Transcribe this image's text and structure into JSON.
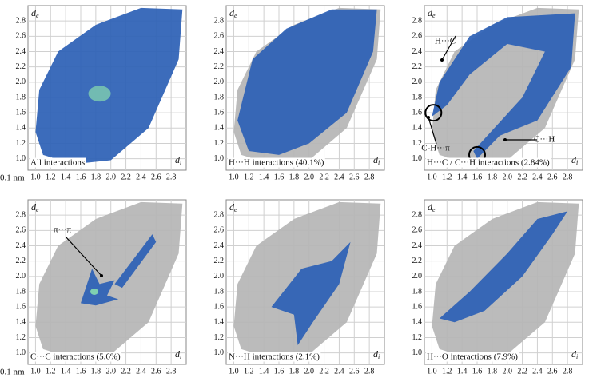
{
  "chart_data": [
    {
      "type": "fingerprint",
      "title": "All interactions",
      "unit_label": "0.1 nm",
      "x_label": {
        "symbol": "d",
        "subscript": "i"
      },
      "y_label": {
        "symbol": "d",
        "subscript": "e"
      },
      "xlim": [
        0.9,
        3.0
      ],
      "ylim": [
        0.85,
        3.0
      ],
      "xticks": [
        {
          "value": 1,
          "label": "1.0"
        },
        1.2,
        1.4,
        1.6,
        1.8,
        {
          "value": 2,
          "label": "2.0"
        },
        2.2,
        2.4,
        2.6,
        2.8
      ],
      "yticks": [
        {
          "value": 1,
          "label": "1.0"
        },
        1.2,
        1.4,
        1.6,
        1.8,
        {
          "value": 2,
          "label": "2.0"
        },
        2.2,
        2.4,
        2.6,
        2.8
      ],
      "grid": true
    },
    {
      "type": "fingerprint",
      "title": "H···H interactions (40.1%)",
      "x_label": {
        "symbol": "d",
        "subscript": "i"
      },
      "y_label": {
        "symbol": "d",
        "subscript": "e"
      },
      "xlim": [
        0.9,
        3.0
      ],
      "ylim": [
        0.85,
        3.0
      ],
      "xticks": [
        {
          "value": 1,
          "label": "1.0"
        },
        1.2,
        1.4,
        1.6,
        1.8,
        {
          "value": 2,
          "label": "2.0"
        },
        2.2,
        2.4,
        2.6,
        2.8
      ],
      "yticks": [
        {
          "value": 1,
          "label": "1.0"
        },
        1.2,
        1.4,
        1.6,
        1.8,
        {
          "value": 2,
          "label": "2.0"
        },
        2.2,
        2.4,
        2.6,
        2.8
      ],
      "grid": true
    },
    {
      "type": "fingerprint",
      "title": "H···C / C···H interactions (2.84%)",
      "x_label": {
        "symbol": "d",
        "subscript": "i"
      },
      "y_label": {
        "symbol": "d",
        "subscript": "e"
      },
      "xlim": [
        0.9,
        3.0
      ],
      "ylim": [
        0.85,
        3.0
      ],
      "xticks": [
        {
          "value": 1,
          "label": "1.0"
        },
        1.2,
        1.4,
        1.6,
        1.8,
        {
          "value": 2,
          "label": "2.0"
        },
        2.2,
        2.4,
        2.6,
        2.8
      ],
      "yticks": [
        {
          "value": 1,
          "label": "1.0"
        },
        1.2,
        1.4,
        1.6,
        1.8,
        {
          "value": 2,
          "label": "2.0"
        },
        2.2,
        2.4,
        2.6,
        2.8
      ],
      "grid": true,
      "annotations": [
        "H···C",
        "C-H···π",
        "C···H"
      ]
    },
    {
      "type": "fingerprint",
      "title": "C···C interactions (5.6%)",
      "unit_label": "0.1 nm",
      "x_label": {
        "symbol": "d",
        "subscript": "i"
      },
      "y_label": {
        "symbol": "d",
        "subscript": "e"
      },
      "xlim": [
        0.9,
        3.0
      ],
      "ylim": [
        0.85,
        3.0
      ],
      "xticks": [
        {
          "value": 1,
          "label": "1.0"
        },
        1.2,
        1.4,
        1.6,
        1.8,
        {
          "value": 2,
          "label": "2.0"
        },
        2.2,
        2.4,
        2.6,
        2.8
      ],
      "yticks": [
        {
          "value": 1,
          "label": "1.0"
        },
        1.2,
        1.4,
        1.6,
        1.8,
        {
          "value": 2,
          "label": "2.0"
        },
        2.2,
        2.4,
        2.6,
        2.8
      ],
      "grid": true,
      "annotations": [
        "π···π"
      ]
    },
    {
      "type": "fingerprint",
      "title": "N···H interactions (2.1%)",
      "x_label": {
        "symbol": "d",
        "subscript": "i"
      },
      "y_label": {
        "symbol": "d",
        "subscript": "e"
      },
      "xlim": [
        0.9,
        3.0
      ],
      "ylim": [
        0.85,
        3.0
      ],
      "xticks": [
        {
          "value": 1,
          "label": "1.0"
        },
        1.2,
        1.4,
        1.6,
        1.8,
        {
          "value": 2,
          "label": "2.0"
        },
        2.2,
        2.4,
        2.6,
        2.8
      ],
      "yticks": [
        {
          "value": 1,
          "label": "1.0"
        },
        1.2,
        1.4,
        1.6,
        1.8,
        {
          "value": 2,
          "label": "2.0"
        },
        2.2,
        2.4,
        2.6,
        2.8
      ],
      "grid": true
    },
    {
      "type": "fingerprint",
      "title": "H···O interactions (7.9%)",
      "x_label": {
        "symbol": "d",
        "subscript": "i"
      },
      "y_label": {
        "symbol": "d",
        "subscript": "e"
      },
      "xlim": [
        0.9,
        3.0
      ],
      "ylim": [
        0.85,
        3.0
      ],
      "xticks": [
        {
          "value": 1,
          "label": "1.0"
        },
        1.2,
        1.4,
        1.6,
        1.8,
        {
          "value": 2,
          "label": "2.0"
        },
        2.2,
        2.4,
        2.6,
        2.8
      ],
      "yticks": [
        {
          "value": 1,
          "label": "1.0"
        },
        1.2,
        1.4,
        1.6,
        1.8,
        {
          "value": 2,
          "label": "2.0"
        },
        2.2,
        2.4,
        2.6,
        2.8
      ],
      "grid": true
    }
  ]
}
